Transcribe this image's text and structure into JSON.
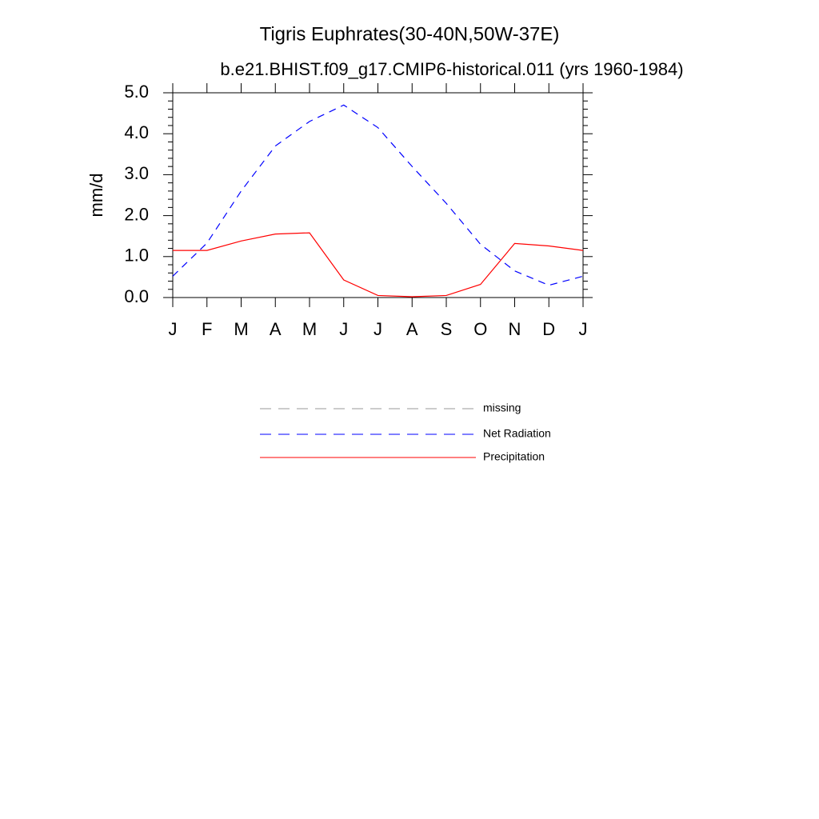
{
  "chart_data": {
    "type": "line",
    "title": "Tigris Euphrates(30-40N,50W-37E)",
    "subtitle": "b.e21.BHIST.f09_g17.CMIP6-historical.011 (yrs 1960-1984)",
    "y_label": "mm/d",
    "categories": [
      "J",
      "F",
      "M",
      "A",
      "M",
      "J",
      "J",
      "A",
      "S",
      "O",
      "N",
      "D",
      "J"
    ],
    "ylim": [
      0,
      5
    ],
    "yticks": [
      {
        "value": 0,
        "label": "0.0"
      },
      {
        "value": 1,
        "label": "1.0"
      },
      {
        "value": 2,
        "label": "2.0"
      },
      {
        "value": 3,
        "label": "3.0"
      },
      {
        "value": 4,
        "label": "4.0"
      },
      {
        "value": 5,
        "label": "5.0"
      }
    ],
    "yminorticks": [
      0.2,
      0.4,
      0.6,
      0.8,
      1.2,
      1.4,
      1.6,
      1.8,
      2.2,
      2.4,
      2.6,
      2.8,
      3.2,
      3.4,
      3.6,
      3.8,
      4.2,
      4.4,
      4.6,
      4.8
    ],
    "series": [
      {
        "name": "missing",
        "color": "#999999",
        "dash": true,
        "values": [
          null,
          null,
          null,
          null,
          null,
          null,
          null,
          null,
          null,
          null,
          null,
          null,
          null
        ]
      },
      {
        "name": "Net Radiation",
        "color": "#0000ff",
        "dash": true,
        "values": [
          0.52,
          1.33,
          2.6,
          3.7,
          4.3,
          4.7,
          4.15,
          3.2,
          2.3,
          1.3,
          0.65,
          0.3,
          0.52
        ]
      },
      {
        "name": "Precipitation",
        "color": "#ff0000",
        "dash": false,
        "values": [
          1.15,
          1.15,
          1.38,
          1.55,
          1.58,
          0.43,
          0.05,
          0.02,
          0.05,
          0.32,
          1.32,
          1.26,
          1.15
        ]
      }
    ]
  }
}
